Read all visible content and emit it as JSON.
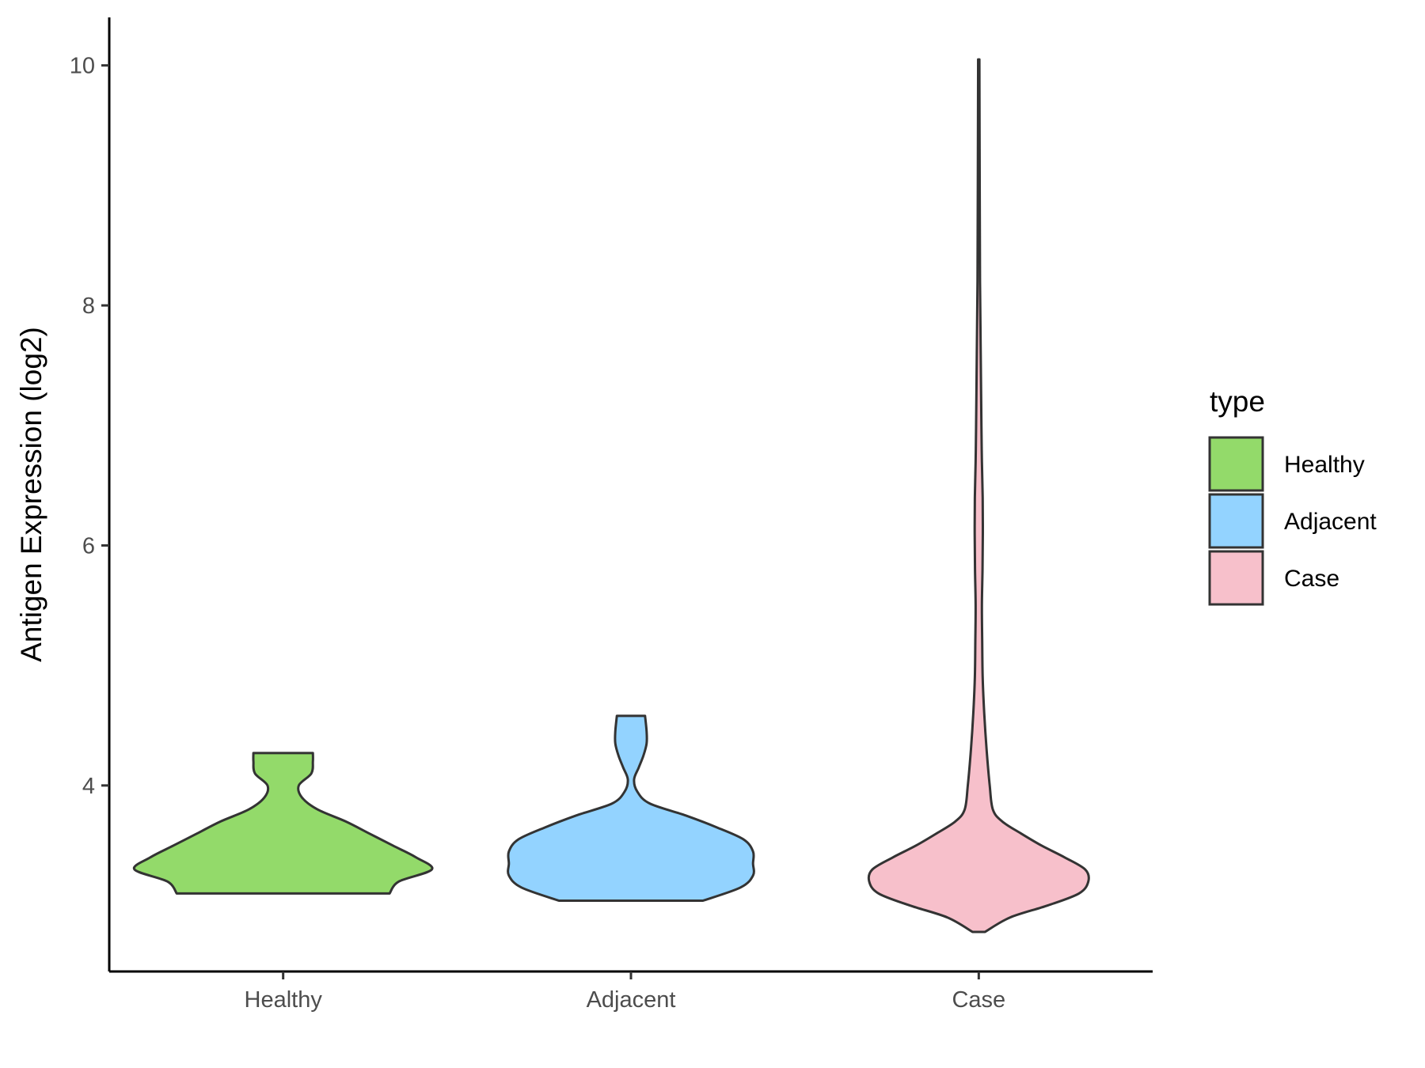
{
  "chart_data": {
    "type": "violin",
    "ylabel": "Antigen Expression (log2)",
    "xlabel": "",
    "ylim": [
      2.45,
      10.4
    ],
    "yticks": [
      4,
      6,
      8,
      10
    ],
    "categories": [
      "Healthy",
      "Adjacent",
      "Case"
    ],
    "grid": false,
    "legend": {
      "title": "type",
      "placement": "right",
      "entries": [
        "Healthy",
        "Adjacent",
        "Case"
      ]
    },
    "series": [
      {
        "category": "Healthy",
        "color": "#93DA6A",
        "min": 3.1,
        "max": 4.27,
        "density": [
          [
            3.1,
            0.68
          ],
          [
            3.2,
            0.74
          ],
          [
            3.3,
            0.95
          ],
          [
            3.4,
            0.85
          ],
          [
            3.5,
            0.7
          ],
          [
            3.6,
            0.55
          ],
          [
            3.7,
            0.4
          ],
          [
            3.8,
            0.22
          ],
          [
            3.9,
            0.12
          ],
          [
            4.0,
            0.1
          ],
          [
            4.1,
            0.18
          ],
          [
            4.2,
            0.19
          ],
          [
            4.27,
            0.19
          ]
        ]
      },
      {
        "category": "Adjacent",
        "color": "#93D3FF",
        "min": 3.04,
        "max": 4.58,
        "density": [
          [
            3.04,
            0.46
          ],
          [
            3.15,
            0.7
          ],
          [
            3.25,
            0.78
          ],
          [
            3.35,
            0.78
          ],
          [
            3.45,
            0.78
          ],
          [
            3.55,
            0.72
          ],
          [
            3.65,
            0.55
          ],
          [
            3.75,
            0.35
          ],
          [
            3.85,
            0.12
          ],
          [
            3.95,
            0.04
          ],
          [
            4.05,
            0.02
          ],
          [
            4.15,
            0.05
          ],
          [
            4.25,
            0.08
          ],
          [
            4.35,
            0.1
          ],
          [
            4.45,
            0.1
          ],
          [
            4.58,
            0.09
          ]
        ]
      },
      {
        "category": "Case",
        "color": "#F7C0CB",
        "min": 2.78,
        "max": 10.05,
        "density": [
          [
            2.78,
            0.04
          ],
          [
            2.9,
            0.2
          ],
          [
            3.0,
            0.44
          ],
          [
            3.1,
            0.64
          ],
          [
            3.2,
            0.7
          ],
          [
            3.3,
            0.68
          ],
          [
            3.4,
            0.55
          ],
          [
            3.5,
            0.4
          ],
          [
            3.6,
            0.27
          ],
          [
            3.7,
            0.15
          ],
          [
            3.8,
            0.09
          ],
          [
            4.0,
            0.07
          ],
          [
            4.3,
            0.05
          ],
          [
            4.6,
            0.035
          ],
          [
            4.9,
            0.025
          ],
          [
            5.2,
            0.022
          ],
          [
            5.5,
            0.02
          ],
          [
            5.8,
            0.024
          ],
          [
            6.1,
            0.026
          ],
          [
            6.4,
            0.025
          ],
          [
            6.7,
            0.02
          ],
          [
            7.0,
            0.017
          ],
          [
            7.4,
            0.014
          ],
          [
            7.8,
            0.011
          ],
          [
            8.2,
            0.008
          ],
          [
            8.6,
            0.007
          ],
          [
            9.0,
            0.006
          ],
          [
            9.5,
            0.005
          ],
          [
            10.05,
            0.004
          ]
        ]
      }
    ]
  }
}
